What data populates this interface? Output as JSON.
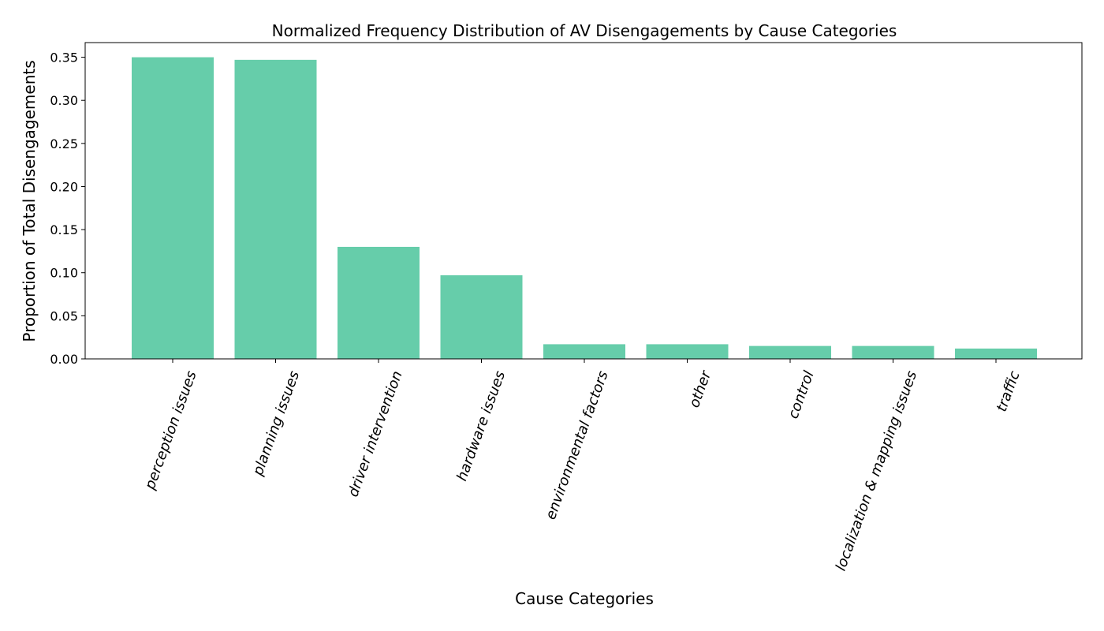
{
  "chart_data": {
    "type": "bar",
    "title": "Normalized Frequency Distribution of AV Disengagements by Cause Categories",
    "xlabel": "Cause Categories",
    "ylabel": "Proportion of Total Disengagements",
    "categories": [
      "perception issues",
      "planning issues",
      "driver intervention",
      "hardware issues",
      "environmental factors",
      "other",
      "control",
      "localization & mapping issues",
      "traffic"
    ],
    "values": [
      0.35,
      0.347,
      0.13,
      0.097,
      0.017,
      0.017,
      0.015,
      0.015,
      0.012
    ],
    "ylim": [
      0,
      0.367
    ],
    "yticks": [
      "0.00",
      "0.05",
      "0.10",
      "0.15",
      "0.20",
      "0.25",
      "0.30",
      "0.35"
    ],
    "bar_color": "#66cdaa",
    "grid": false
  }
}
